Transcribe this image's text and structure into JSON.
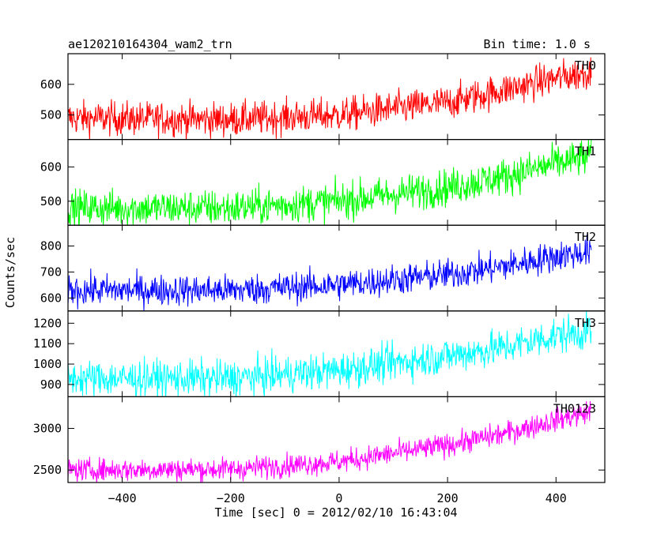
{
  "header": {
    "title": "ae120210164304_wam2_trn",
    "bin_time": "Bin time: 1.0 s"
  },
  "chart_data": {
    "type": "line",
    "xlabel": "Time [sec] 0 = 2012/02/10 16:43:04",
    "ylabel": "Counts/sec",
    "xlim": [
      -500,
      490
    ],
    "x_range_data": [
      -500,
      465
    ],
    "x_ticks": [
      -400,
      -200,
      0,
      200,
      400
    ],
    "series": [
      {
        "name": "TH0",
        "color": "#ff0000",
        "ylim": [
          420,
          700
        ],
        "y_ticks": [
          500,
          600
        ],
        "trend": [
          [
            -500,
            490
          ],
          [
            -200,
            485
          ],
          [
            0,
            500
          ],
          [
            200,
            540
          ],
          [
            300,
            580
          ],
          [
            400,
            620
          ],
          [
            465,
            640
          ]
        ],
        "noise": 28
      },
      {
        "name": "TH1",
        "color": "#00ff00",
        "ylim": [
          430,
          680
        ],
        "y_ticks": [
          500,
          600
        ],
        "trend": [
          [
            -500,
            480
          ],
          [
            -200,
            480
          ],
          [
            0,
            500
          ],
          [
            200,
            540
          ],
          [
            300,
            570
          ],
          [
            400,
            610
          ],
          [
            465,
            630
          ]
        ],
        "noise": 27
      },
      {
        "name": "TH2",
        "color": "#0000ff",
        "ylim": [
          550,
          880
        ],
        "y_ticks": [
          600,
          700,
          800
        ],
        "trend": [
          [
            -500,
            630
          ],
          [
            -200,
            630
          ],
          [
            0,
            650
          ],
          [
            200,
            690
          ],
          [
            300,
            720
          ],
          [
            400,
            760
          ],
          [
            465,
            780
          ]
        ],
        "noise": 30
      },
      {
        "name": "TH3",
        "color": "#00ffff",
        "ylim": [
          840,
          1260
        ],
        "y_ticks": [
          900,
          1000,
          1100,
          1200
        ],
        "trend": [
          [
            -500,
            930
          ],
          [
            -200,
            930
          ],
          [
            0,
            970
          ],
          [
            200,
            1040
          ],
          [
            300,
            1080
          ],
          [
            400,
            1140
          ],
          [
            465,
            1160
          ]
        ],
        "noise": 45
      },
      {
        "name": "TH0123",
        "color": "#ff00ff",
        "ylim": [
          2350,
          3380
        ],
        "y_ticks": [
          2500,
          3000
        ],
        "trend": [
          [
            -500,
            2500
          ],
          [
            -200,
            2510
          ],
          [
            0,
            2600
          ],
          [
            200,
            2800
          ],
          [
            300,
            2930
          ],
          [
            400,
            3100
          ],
          [
            465,
            3200
          ]
        ],
        "noise": 70
      }
    ]
  }
}
